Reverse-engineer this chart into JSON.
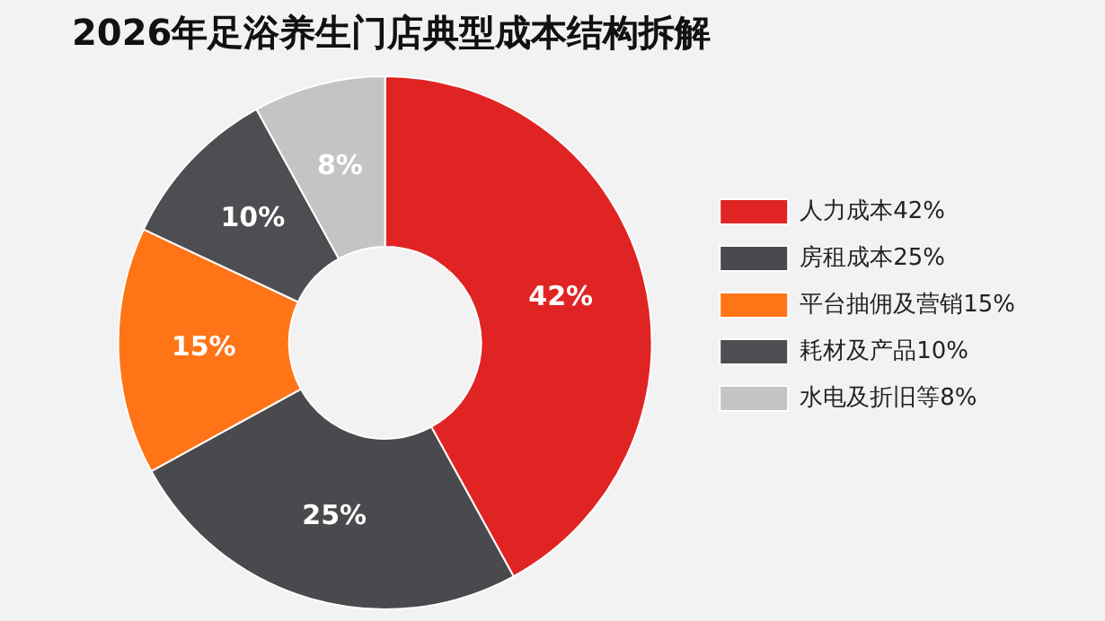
{
  "chart_data": {
    "type": "donut",
    "title": "2026年足浴养生门店典型成本结构拆解",
    "categories": [
      "人力成本42%",
      "房租成本25%",
      "平台抽佣及营销15%",
      "耗材及产品10%",
      "水电及折旧等8%"
    ],
    "values": [
      42,
      25,
      15,
      10,
      8
    ],
    "colors": [
      "#e02424",
      "#4a4a4e",
      "#ff7416",
      "#4e4e52",
      "#c4c4c4"
    ],
    "value_labels": [
      "42%",
      "25%",
      "15%",
      "10%",
      "8%"
    ],
    "legend": "right"
  }
}
